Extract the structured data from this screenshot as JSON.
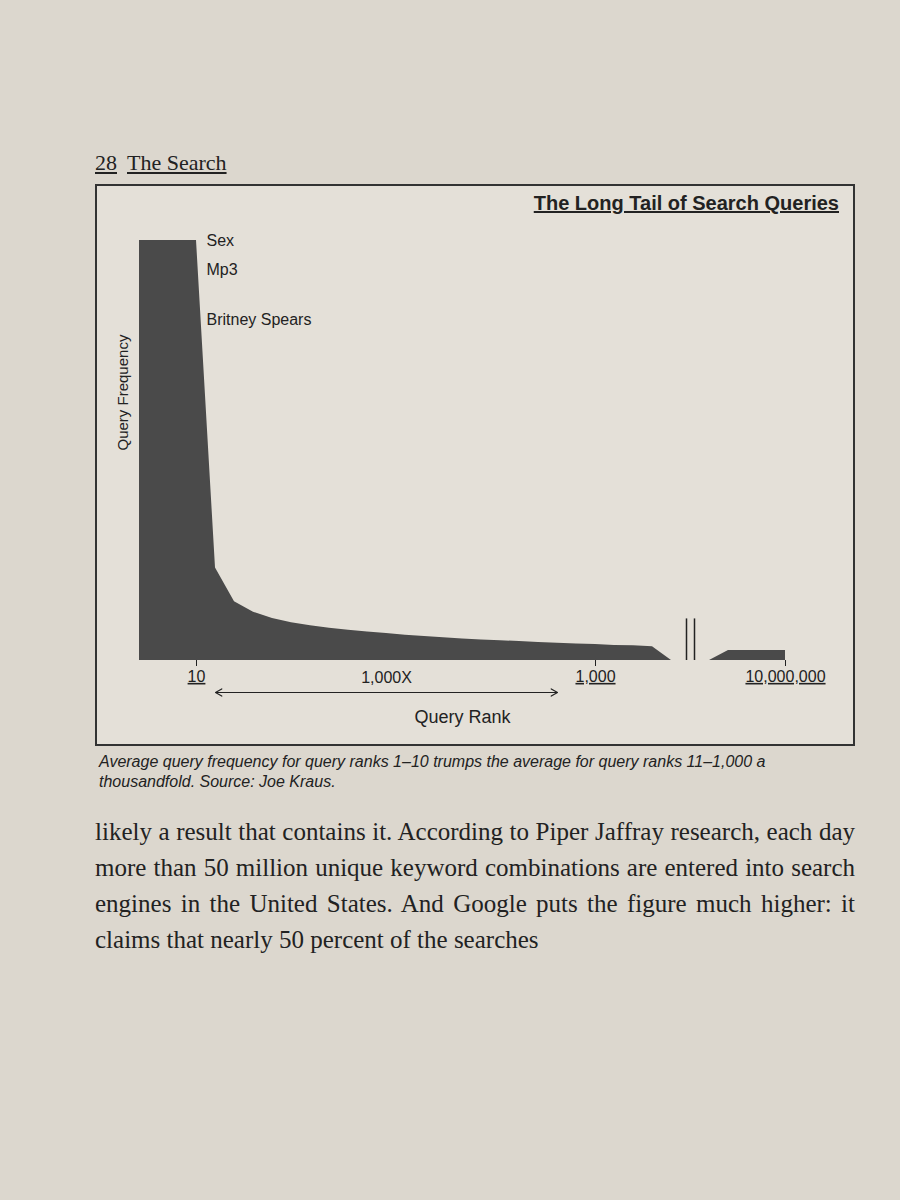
{
  "page": {
    "header_number": "28",
    "header_title": "The Search",
    "body_text": "likely a result that contains it. According to Piper Jaffray research, each day more than 50 million unique keyword combinations are entered into search engines in the United States. And Google puts the figure much higher: it claims that nearly 50 percent of the searches"
  },
  "chart_data": {
    "type": "area",
    "title": "The Long Tail of Search Queries",
    "caption": "Average query frequency for query ranks 1–10 trumps the average for query ranks 11–1,000 a thousandfold. Source: Joe Kraus.",
    "x_label": "Query Rank",
    "y_label": "Query Frequency",
    "categories": [
      null,
      null,
      null,
      "10",
      null,
      null,
      null,
      null,
      null,
      null,
      null,
      null,
      null,
      null,
      null,
      null,
      null,
      null,
      null,
      null,
      null,
      null,
      null,
      null,
      "1,000",
      null,
      null,
      null,
      null,
      null,
      null,
      null,
      null,
      null,
      "10,000,000"
    ],
    "values": [
      100,
      100,
      100,
      100,
      22,
      14,
      11.5,
      10,
      9,
      8.3,
      7.7,
      7.2,
      6.8,
      6.4,
      6.0,
      5.7,
      5.4,
      5.1,
      4.9,
      4.7,
      4.5,
      4.3,
      4.1,
      3.9,
      3.8,
      3.6,
      3.5,
      3.3,
      null,
      null,
      null,
      2.4,
      2.4,
      2.4,
      2.4
    ],
    "color": "#4a4a4a",
    "ylim": [
      0,
      100
    ],
    "tick_labels": "x",
    "annotations": [
      {
        "text": "Sex",
        "y": 100
      },
      {
        "text": "Mp3",
        "y": 93
      },
      {
        "text": "Britney Spears",
        "y": 81
      }
    ],
    "arrow_label": "1,000X"
  }
}
